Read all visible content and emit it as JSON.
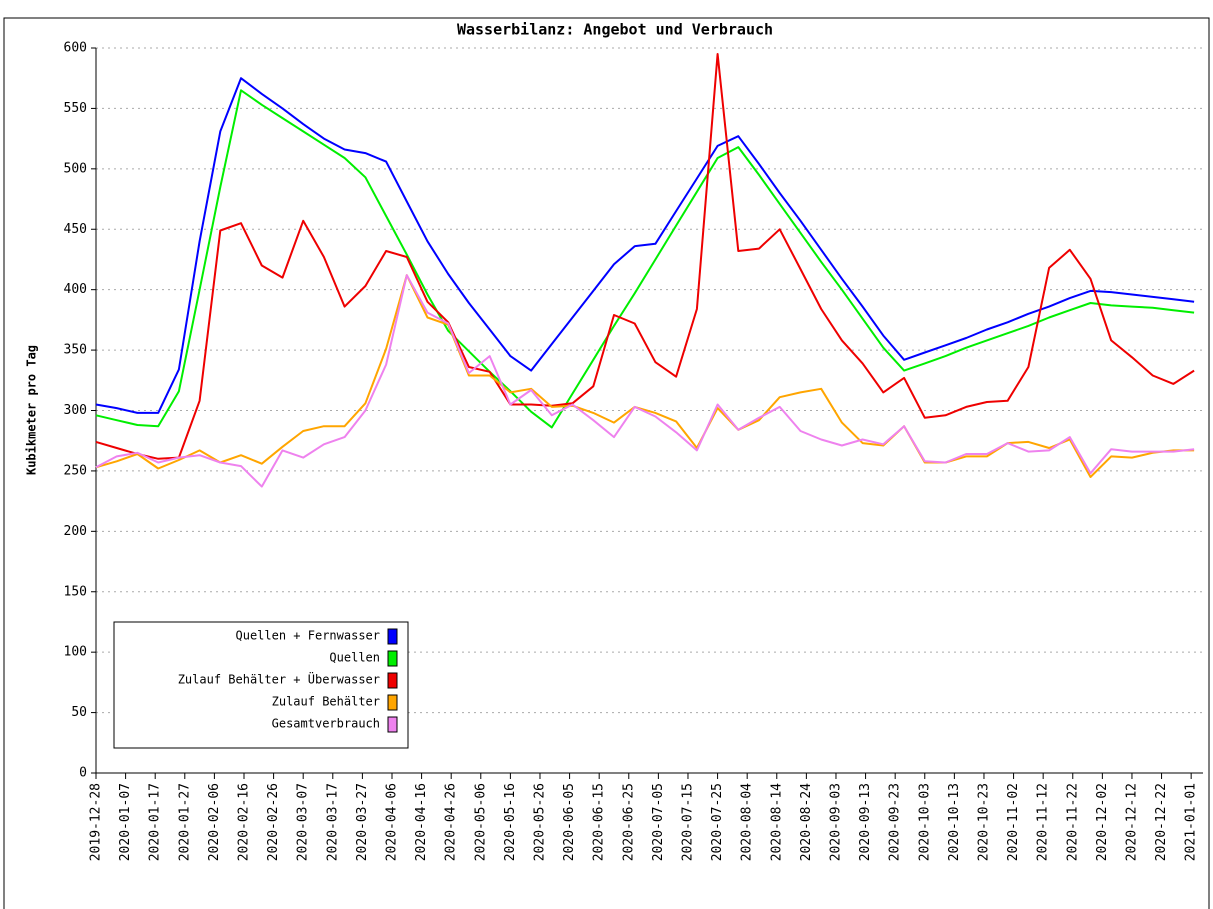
{
  "chart_data": {
    "type": "line",
    "title": "Wasserbilanz: Angebot und Verbrauch",
    "y_label": "Kubikmeter pro Tag",
    "x": [
      "2019-12-28",
      "2020-01-04",
      "2020-01-11",
      "2020-01-18",
      "2020-01-25",
      "2020-02-01",
      "2020-02-08",
      "2020-02-15",
      "2020-02-22",
      "2020-02-29",
      "2020-03-07",
      "2020-03-14",
      "2020-03-21",
      "2020-03-28",
      "2020-04-04",
      "2020-04-11",
      "2020-04-18",
      "2020-04-25",
      "2020-05-02",
      "2020-05-09",
      "2020-05-16",
      "2020-05-23",
      "2020-05-30",
      "2020-06-06",
      "2020-06-13",
      "2020-06-20",
      "2020-06-27",
      "2020-07-04",
      "2020-07-11",
      "2020-07-18",
      "2020-07-25",
      "2020-08-01",
      "2020-08-08",
      "2020-08-15",
      "2020-08-22",
      "2020-08-29",
      "2020-09-05",
      "2020-09-12",
      "2020-09-19",
      "2020-09-26",
      "2020-10-03",
      "2020-10-10",
      "2020-10-17",
      "2020-10-24",
      "2020-10-31",
      "2020-11-07",
      "2020-11-14",
      "2020-11-21",
      "2020-11-28",
      "2020-12-05",
      "2020-12-12",
      "2020-12-19",
      "2020-12-26",
      "2021-01-02"
    ],
    "series": [
      {
        "name": "Quellen + Fernwasser",
        "color": "#0000ff",
        "values": [
          305,
          302,
          298,
          298,
          334,
          440,
          531,
          575,
          562,
          550,
          537,
          525,
          516,
          513,
          506,
          473,
          440,
          413,
          389,
          367,
          345,
          333,
          355,
          377,
          399,
          421,
          436,
          438,
          465,
          492,
          519,
          527,
          504,
          480,
          457,
          433,
          409,
          386,
          362,
          342,
          348,
          354,
          360,
          367,
          373,
          380,
          386,
          393,
          399,
          398,
          396,
          394,
          392,
          390
        ]
      },
      {
        "name": "Quellen",
        "color": "#00ee00",
        "values": [
          296,
          292,
          288,
          287,
          316,
          400,
          485,
          565,
          553,
          542,
          531,
          520,
          509,
          493,
          461,
          429,
          396,
          366,
          349,
          332,
          316,
          299,
          286,
          314,
          342,
          370,
          397,
          425,
          453,
          481,
          509,
          518,
          495,
          471,
          447,
          423,
          400,
          376,
          352,
          333,
          339,
          345,
          352,
          358,
          364,
          370,
          377,
          383,
          389,
          387,
          386,
          385,
          383,
          381
        ]
      },
      {
        "name": "Zulauf Behälter + Überwasser",
        "color": "#ee0000",
        "values": [
          274,
          269,
          264,
          260,
          261,
          308,
          449,
          455,
          420,
          410,
          457,
          427,
          386,
          403,
          432,
          427,
          390,
          373,
          336,
          332,
          305,
          305,
          304,
          306,
          320,
          379,
          372,
          340,
          328,
          384,
          595,
          432,
          434,
          450,
          417,
          384,
          358,
          339,
          315,
          327,
          294,
          296,
          303,
          307,
          308,
          336,
          418,
          433,
          409,
          358,
          344,
          329,
          322,
          333
        ]
      },
      {
        "name": "Zulauf Behälter",
        "color": "#ffa500",
        "values": [
          253,
          258,
          264,
          252,
          259,
          267,
          257,
          263,
          256,
          270,
          283,
          287,
          287,
          306,
          351,
          412,
          377,
          371,
          329,
          329,
          315,
          318,
          303,
          304,
          298,
          290,
          303,
          298,
          291,
          269,
          302,
          284,
          292,
          311,
          315,
          318,
          290,
          273,
          271,
          287,
          257,
          257,
          262,
          262,
          273,
          274,
          269,
          276,
          245,
          262,
          261,
          265,
          267,
          267
        ]
      },
      {
        "name": "Gesamtverbrauch",
        "color": "#ee82ee",
        "values": [
          253,
          262,
          265,
          257,
          261,
          263,
          257,
          254,
          237,
          267,
          261,
          272,
          278,
          300,
          338,
          412,
          381,
          372,
          331,
          345,
          305,
          317,
          296,
          305,
          292,
          278,
          303,
          295,
          282,
          267,
          305,
          284,
          294,
          303,
          283,
          276,
          271,
          276,
          272,
          287,
          258,
          257,
          264,
          264,
          273,
          266,
          267,
          278,
          248,
          268,
          266,
          266,
          266,
          268
        ]
      }
    ],
    "xlim": [
      "2019-12-28",
      "2021-01-05"
    ],
    "xticks": [
      "2019-12-28",
      "2020-01-07",
      "2020-01-17",
      "2020-01-27",
      "2020-02-06",
      "2020-02-16",
      "2020-02-26",
      "2020-03-07",
      "2020-03-17",
      "2020-03-27",
      "2020-04-06",
      "2020-04-16",
      "2020-04-26",
      "2020-05-06",
      "2020-05-16",
      "2020-05-26",
      "2020-06-05",
      "2020-06-15",
      "2020-06-25",
      "2020-07-05",
      "2020-07-15",
      "2020-07-25",
      "2020-08-04",
      "2020-08-14",
      "2020-08-24",
      "2020-09-03",
      "2020-09-13",
      "2020-09-23",
      "2020-10-03",
      "2020-10-13",
      "2020-10-23",
      "2020-11-02",
      "2020-11-12",
      "2020-11-22",
      "2020-12-02",
      "2020-12-12",
      "2020-12-22",
      "2021-01-01"
    ],
    "ylim": [
      0,
      600
    ],
    "yticks": [
      0,
      50,
      100,
      150,
      200,
      250,
      300,
      350,
      400,
      450,
      500,
      550,
      600
    ],
    "grid": true,
    "legend": "lower left"
  }
}
